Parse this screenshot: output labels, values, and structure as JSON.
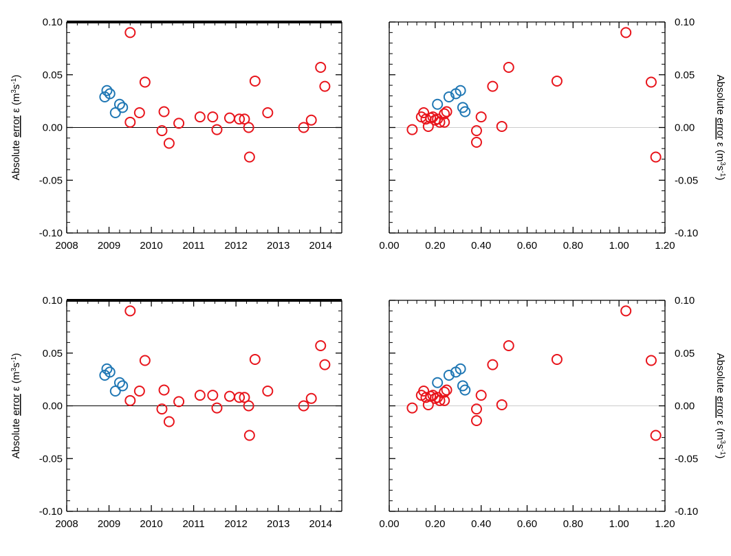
{
  "colors": {
    "series_a": "#1f77b4",
    "series_b": "#e8141b",
    "axis": "#000000",
    "zero_line_left": "#000000",
    "zero_line_right": "#cccccc",
    "spellcheck_underline": "#1f3fd6"
  },
  "labels": {
    "left_ylabel_parts": [
      "Absolute ",
      "error",
      "  ε (m",
      "3",
      "s",
      "-1",
      ")"
    ],
    "right_ylabel_parts": [
      "Absolute ",
      "error",
      "  ε (m",
      "3",
      "s",
      "-1",
      ")"
    ]
  },
  "chart_data": [
    {
      "type": "scatter",
      "panel": "top-left",
      "xlim": [
        2008,
        2014.5
      ],
      "ylim": [
        -0.1,
        0.1
      ],
      "xticks": [
        2008,
        2009,
        2010,
        2011,
        2012,
        2013,
        2014
      ],
      "xtick_labels": [
        "2008",
        "2009",
        "2010",
        "2011",
        "2012",
        "2013",
        "2014"
      ],
      "yticks": [
        -0.1,
        -0.05,
        0,
        0.05,
        0.1
      ],
      "ytick_labels": [
        "-0.10",
        "-0.05",
        "0.00",
        "0.05",
        "0.10"
      ],
      "ylabel_side": "left",
      "zero_line": true,
      "series": [
        {
          "color": "blue",
          "points": [
            [
              2008.9,
              0.029
            ],
            [
              2008.95,
              0.035
            ],
            [
              2009.02,
              0.032
            ],
            [
              2009.15,
              0.014
            ],
            [
              2009.25,
              0.022
            ],
            [
              2009.32,
              0.019
            ]
          ]
        },
        {
          "color": "red",
          "points": [
            [
              2009.5,
              0.09
            ],
            [
              2009.5,
              0.005
            ],
            [
              2009.72,
              0.014
            ],
            [
              2009.85,
              0.043
            ],
            [
              2010.25,
              -0.003
            ],
            [
              2010.3,
              0.015
            ],
            [
              2010.42,
              -0.015
            ],
            [
              2010.65,
              0.004
            ],
            [
              2011.15,
              0.01
            ],
            [
              2011.45,
              0.01
            ],
            [
              2011.55,
              -0.002
            ],
            [
              2011.85,
              0.009
            ],
            [
              2012.08,
              0.008
            ],
            [
              2012.2,
              0.008
            ],
            [
              2012.3,
              0.0
            ],
            [
              2012.32,
              -0.028
            ],
            [
              2012.45,
              0.044
            ],
            [
              2012.75,
              0.014
            ],
            [
              2013.6,
              0.0
            ],
            [
              2013.78,
              0.007
            ],
            [
              2014.0,
              0.057
            ],
            [
              2014.1,
              0.039
            ]
          ]
        }
      ]
    },
    {
      "type": "scatter",
      "panel": "top-right",
      "xlim": [
        0.0,
        1.2
      ],
      "ylim": [
        -0.1,
        0.1
      ],
      "xticks": [
        0,
        0.2,
        0.4,
        0.6,
        0.8,
        1.0,
        1.2
      ],
      "xtick_labels": [
        "0.00",
        "0.20",
        "0.40",
        "0.60",
        "0.80",
        "1.00",
        "1.20"
      ],
      "yticks": [
        -0.1,
        -0.05,
        0,
        0.05,
        0.1
      ],
      "ytick_labels": [
        "-0.10",
        "-0.05",
        "0.00",
        "0.05",
        "0.10"
      ],
      "ylabel_side": "right",
      "zero_line": true,
      "series": [
        {
          "color": "blue",
          "points": [
            [
              0.21,
              0.022
            ],
            [
              0.26,
              0.029
            ],
            [
              0.29,
              0.032
            ],
            [
              0.31,
              0.035
            ],
            [
              0.32,
              0.019
            ],
            [
              0.33,
              0.015
            ]
          ]
        },
        {
          "color": "red",
          "points": [
            [
              0.1,
              -0.002
            ],
            [
              0.14,
              0.01
            ],
            [
              0.15,
              0.014
            ],
            [
              0.16,
              0.008
            ],
            [
              0.17,
              0.001
            ],
            [
              0.18,
              0.009
            ],
            [
              0.19,
              0.01
            ],
            [
              0.2,
              0.007
            ],
            [
              0.21,
              0.008
            ],
            [
              0.22,
              0.005
            ],
            [
              0.24,
              0.013
            ],
            [
              0.24,
              0.005
            ],
            [
              0.25,
              0.015
            ],
            [
              0.38,
              -0.003
            ],
            [
              0.38,
              -0.014
            ],
            [
              0.4,
              0.01
            ],
            [
              0.45,
              0.039
            ],
            [
              0.49,
              0.001
            ],
            [
              0.52,
              0.057
            ],
            [
              0.73,
              0.044
            ],
            [
              1.03,
              0.09
            ],
            [
              1.14,
              0.043
            ],
            [
              1.16,
              -0.028
            ]
          ]
        }
      ]
    },
    {
      "type": "scatter",
      "panel": "bottom-left",
      "xlim": [
        2008,
        2014.5
      ],
      "ylim": [
        -0.1,
        0.1
      ],
      "xticks": [
        2008,
        2009,
        2010,
        2011,
        2012,
        2013,
        2014
      ],
      "xtick_labels": [
        "2008",
        "2009",
        "2010",
        "2011",
        "2012",
        "2013",
        "2014"
      ],
      "yticks": [
        -0.1,
        -0.05,
        0,
        0.05,
        0.1
      ],
      "ytick_labels": [
        "-0.10",
        "-0.05",
        "0.00",
        "0.05",
        "0.10"
      ],
      "ylabel_side": "left",
      "zero_line": true,
      "series": [
        {
          "color": "blue",
          "points": [
            [
              2008.9,
              0.029
            ],
            [
              2008.95,
              0.035
            ],
            [
              2009.02,
              0.032
            ],
            [
              2009.15,
              0.014
            ],
            [
              2009.25,
              0.022
            ],
            [
              2009.32,
              0.019
            ]
          ]
        },
        {
          "color": "red",
          "points": [
            [
              2009.5,
              0.09
            ],
            [
              2009.5,
              0.005
            ],
            [
              2009.72,
              0.014
            ],
            [
              2009.85,
              0.043
            ],
            [
              2010.25,
              -0.003
            ],
            [
              2010.3,
              0.015
            ],
            [
              2010.42,
              -0.015
            ],
            [
              2010.65,
              0.004
            ],
            [
              2011.15,
              0.01
            ],
            [
              2011.45,
              0.01
            ],
            [
              2011.55,
              -0.002
            ],
            [
              2011.85,
              0.009
            ],
            [
              2012.08,
              0.008
            ],
            [
              2012.2,
              0.008
            ],
            [
              2012.3,
              0.0
            ],
            [
              2012.32,
              -0.028
            ],
            [
              2012.45,
              0.044
            ],
            [
              2012.75,
              0.014
            ],
            [
              2013.6,
              0.0
            ],
            [
              2013.78,
              0.007
            ],
            [
              2014.0,
              0.057
            ],
            [
              2014.1,
              0.039
            ]
          ]
        }
      ]
    },
    {
      "type": "scatter",
      "panel": "bottom-right",
      "xlim": [
        0.0,
        1.2
      ],
      "ylim": [
        -0.1,
        0.1
      ],
      "xticks": [
        0,
        0.2,
        0.4,
        0.6,
        0.8,
        1.0,
        1.2
      ],
      "xtick_labels": [
        "0.00",
        "0.20",
        "0.40",
        "0.60",
        "0.80",
        "1.00",
        "1.20"
      ],
      "yticks": [
        -0.1,
        -0.05,
        0,
        0.05,
        0.1
      ],
      "ytick_labels": [
        "-0.10",
        "-0.05",
        "0.00",
        "0.05",
        "0.10"
      ],
      "ylabel_side": "right",
      "zero_line": true,
      "series": [
        {
          "color": "blue",
          "points": [
            [
              0.21,
              0.022
            ],
            [
              0.26,
              0.029
            ],
            [
              0.29,
              0.032
            ],
            [
              0.31,
              0.035
            ],
            [
              0.32,
              0.019
            ],
            [
              0.33,
              0.015
            ]
          ]
        },
        {
          "color": "red",
          "points": [
            [
              0.1,
              -0.002
            ],
            [
              0.14,
              0.01
            ],
            [
              0.15,
              0.014
            ],
            [
              0.16,
              0.008
            ],
            [
              0.17,
              0.001
            ],
            [
              0.18,
              0.009
            ],
            [
              0.19,
              0.01
            ],
            [
              0.2,
              0.007
            ],
            [
              0.21,
              0.008
            ],
            [
              0.22,
              0.005
            ],
            [
              0.24,
              0.013
            ],
            [
              0.24,
              0.005
            ],
            [
              0.25,
              0.015
            ],
            [
              0.38,
              -0.003
            ],
            [
              0.38,
              -0.014
            ],
            [
              0.4,
              0.01
            ],
            [
              0.45,
              0.039
            ],
            [
              0.49,
              0.001
            ],
            [
              0.52,
              0.057
            ],
            [
              0.73,
              0.044
            ],
            [
              1.03,
              0.09
            ],
            [
              1.14,
              0.043
            ],
            [
              1.16,
              -0.028
            ]
          ]
        }
      ]
    }
  ]
}
